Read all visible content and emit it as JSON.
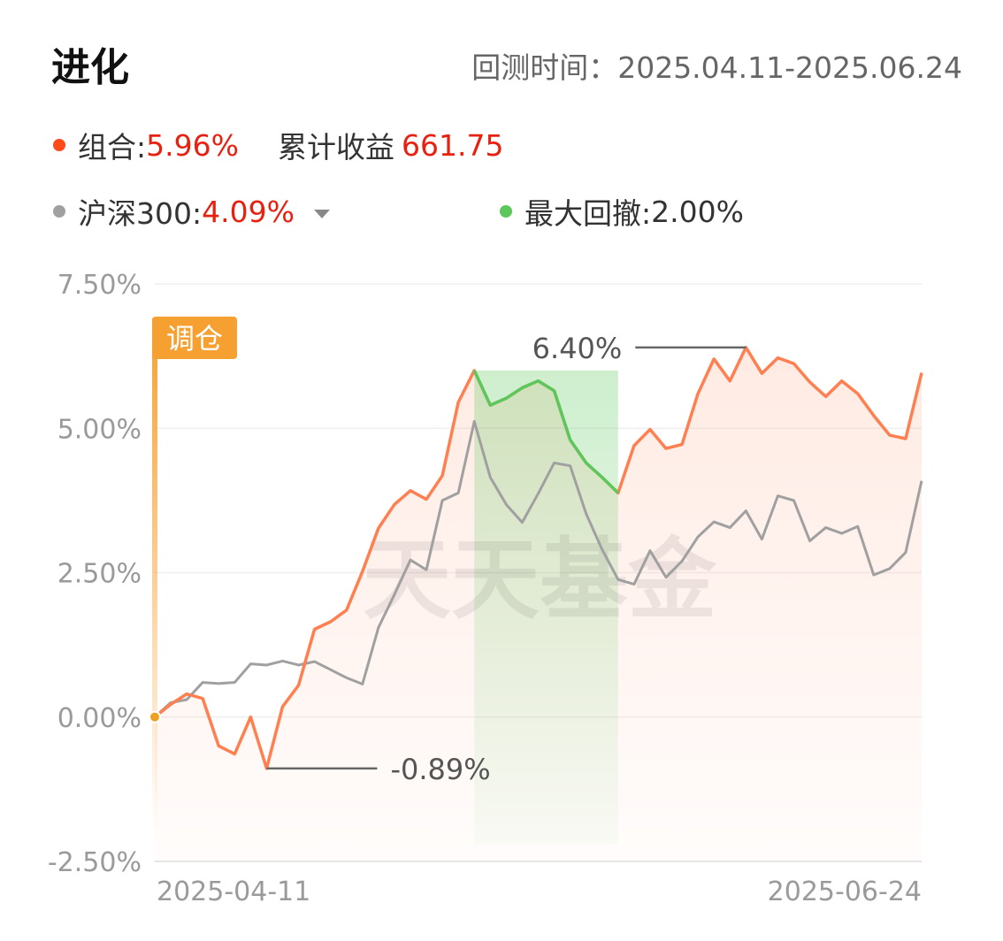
{
  "header": {
    "title": "进化",
    "period_label": "回测时间：",
    "period_value": "2025.04.11-2025.06.24"
  },
  "legend": {
    "portfolio_label": "组合:",
    "portfolio_value": "5.96%",
    "cumulative_label": "累计收益",
    "cumulative_value": "661.75",
    "benchmark_label": "沪深300:",
    "benchmark_value": "4.09%",
    "drawdown_label": "最大回撤:",
    "drawdown_value": "2.00%"
  },
  "colors": {
    "portfolio": "#ff7f50",
    "benchmark": "#a0a0a0",
    "drawdown": "#5cc85c",
    "value_red": "#e8200f",
    "rebalance": "#f5a030"
  },
  "watermark": "天天基金",
  "chart_data": {
    "type": "line",
    "title": "",
    "xlabel": "",
    "ylabel": "",
    "ylim": [
      -2.5,
      7.5
    ],
    "y_ticks": [
      "7.50%",
      "5.00%",
      "2.50%",
      "0.00%",
      "-2.50%"
    ],
    "y_tick_values": [
      7.5,
      5.0,
      2.5,
      0.0,
      -2.5
    ],
    "x_tick_labels": [
      "2025-04-11",
      "2025-06-24"
    ],
    "grid": true,
    "rebalance_label": "调仓",
    "max_label": "6.40%",
    "min_label": "-0.89%",
    "drawdown_range_index": [
      20,
      29
    ],
    "series": [
      {
        "name": "组合",
        "values": [
          0.0,
          0.22,
          0.4,
          0.32,
          -0.5,
          -0.64,
          0.0,
          -0.89,
          0.18,
          0.55,
          1.52,
          1.65,
          1.85,
          2.52,
          3.27,
          3.68,
          3.92,
          3.77,
          4.18,
          5.45,
          6.0,
          5.4,
          5.52,
          5.7,
          5.82,
          5.65,
          4.8,
          4.4,
          4.15,
          3.88,
          4.7,
          4.98,
          4.65,
          4.72,
          5.6,
          6.2,
          5.82,
          6.4,
          5.95,
          6.22,
          6.12,
          5.8,
          5.55,
          5.82,
          5.6,
          5.22,
          4.88,
          4.82,
          5.96
        ]
      },
      {
        "name": "沪深300",
        "values": [
          0.0,
          0.25,
          0.3,
          0.6,
          0.58,
          0.6,
          0.92,
          0.9,
          0.97,
          0.9,
          0.96,
          0.82,
          0.68,
          0.57,
          1.55,
          2.12,
          2.72,
          2.55,
          3.75,
          3.88,
          5.12,
          4.15,
          3.68,
          3.37,
          3.87,
          4.4,
          4.35,
          3.52,
          2.9,
          2.38,
          2.3,
          2.88,
          2.42,
          2.7,
          3.12,
          3.38,
          3.28,
          3.57,
          3.08,
          3.83,
          3.75,
          3.05,
          3.28,
          3.18,
          3.3,
          2.46,
          2.57,
          2.85,
          4.09
        ]
      }
    ]
  }
}
